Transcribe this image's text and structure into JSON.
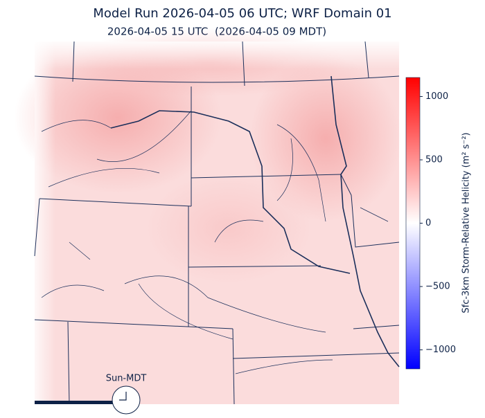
{
  "header": {
    "title": "Model Run 2026-04-05 06 UTC; WRF Domain 01",
    "subtitle": "2026-04-05 15 UTC  (2026-04-05 09 MDT)"
  },
  "colorbar": {
    "label": "Sfc-3km Storm-Relative Helicity (m² s⁻²)",
    "lim": [
      -1150,
      1150
    ],
    "ticks": [
      {
        "value": -1000,
        "label": "−1000"
      },
      {
        "value": -500,
        "label": "−500"
      },
      0,
      500,
      1000
    ],
    "colors": [
      "#0000ff",
      "#ffffff",
      "#ff0000"
    ]
  },
  "clock": {
    "label": "Sun-MDT"
  }
}
